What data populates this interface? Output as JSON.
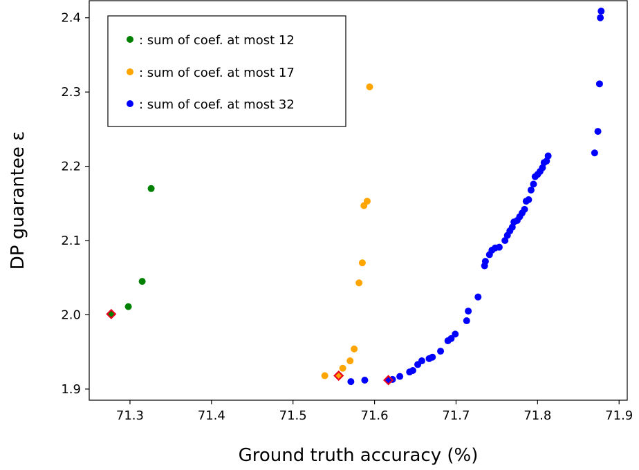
{
  "chart_data": {
    "type": "scatter",
    "xlabel": "Ground truth accuracy (%)",
    "ylabel": "DP guarantee ε",
    "xlim": [
      71.25,
      71.91
    ],
    "ylim": [
      1.885,
      2.423
    ],
    "xticks": [
      "71.3",
      "71.4",
      "71.5",
      "71.6",
      "71.7",
      "71.8",
      "71.9"
    ],
    "yticks": [
      "1.9",
      "2.0",
      "2.1",
      "2.2",
      "2.3",
      "2.4"
    ],
    "grid": false,
    "legend_position": "top-left",
    "series": [
      {
        "name": ": sum of coef. at most 12",
        "color": "#008000",
        "points": [
          [
            71.277,
            2.001
          ],
          [
            71.298,
            2.011
          ],
          [
            71.315,
            2.045
          ],
          [
            71.326,
            2.17
          ]
        ]
      },
      {
        "name": ": sum of coef. at most 17",
        "color": "#ffa500",
        "points": [
          [
            71.539,
            1.918
          ],
          [
            71.556,
            1.918
          ],
          [
            71.561,
            1.928
          ],
          [
            71.57,
            1.938
          ],
          [
            71.575,
            1.954
          ],
          [
            71.581,
            2.043
          ],
          [
            71.585,
            2.07
          ],
          [
            71.587,
            2.147
          ],
          [
            71.591,
            2.153
          ],
          [
            71.594,
            2.307
          ]
        ]
      },
      {
        "name": ": sum of coef. at most 32",
        "color": "#0000ff",
        "points": [
          [
            71.571,
            1.91
          ],
          [
            71.588,
            1.912
          ],
          [
            71.617,
            1.912
          ],
          [
            71.622,
            1.913
          ],
          [
            71.631,
            1.917
          ],
          [
            71.643,
            1.923
          ],
          [
            71.647,
            1.925
          ],
          [
            71.653,
            1.933
          ],
          [
            71.658,
            1.938
          ],
          [
            71.667,
            1.941
          ],
          [
            71.671,
            1.943
          ],
          [
            71.681,
            1.951
          ],
          [
            71.69,
            1.965
          ],
          [
            71.694,
            1.968
          ],
          [
            71.699,
            1.974
          ],
          [
            71.713,
            1.992
          ],
          [
            71.715,
            2.005
          ],
          [
            71.727,
            2.024
          ],
          [
            71.735,
            2.066
          ],
          [
            71.736,
            2.072
          ],
          [
            71.741,
            2.081
          ],
          [
            71.744,
            2.087
          ],
          [
            71.748,
            2.09
          ],
          [
            71.753,
            2.091
          ],
          [
            71.76,
            2.1
          ],
          [
            71.763,
            2.107
          ],
          [
            71.766,
            2.113
          ],
          [
            71.769,
            2.118
          ],
          [
            71.771,
            2.125
          ],
          [
            71.775,
            2.127
          ],
          [
            71.778,
            2.132
          ],
          [
            71.781,
            2.137
          ],
          [
            71.784,
            2.142
          ],
          [
            71.786,
            2.153
          ],
          [
            71.789,
            2.155
          ],
          [
            71.792,
            2.168
          ],
          [
            71.795,
            2.176
          ],
          [
            71.797,
            2.186
          ],
          [
            71.8,
            2.189
          ],
          [
            71.803,
            2.193
          ],
          [
            71.806,
            2.198
          ],
          [
            71.808,
            2.205
          ],
          [
            71.811,
            2.207
          ],
          [
            71.813,
            2.214
          ],
          [
            71.87,
            2.218
          ],
          [
            71.874,
            2.247
          ],
          [
            71.876,
            2.311
          ],
          [
            71.877,
            2.4
          ],
          [
            71.878,
            2.409
          ]
        ]
      }
    ],
    "highlighted_points": {
      "color": "#e8001c",
      "points": [
        [
          71.277,
          2.001
        ],
        [
          71.556,
          1.918
        ],
        [
          71.617,
          1.912
        ]
      ]
    }
  }
}
